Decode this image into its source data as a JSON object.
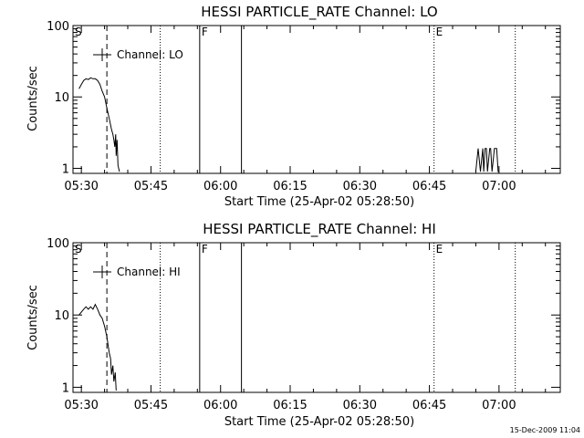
{
  "footer": {
    "timestamp": "15-Dec-2009 11:04"
  },
  "chart_data": [
    {
      "type": "line",
      "title": "HESSI PARTICLE_RATE Channel: LO",
      "xlabel": "Start Time (25-Apr-02 05:28:50)",
      "ylabel": "Counts/sec",
      "yscale": "log",
      "xlim_min": [
        -1.8,
        103.2
      ],
      "ylim": [
        0.85,
        100
      ],
      "x_ticks": [
        0,
        15,
        30,
        45,
        60,
        75,
        90
      ],
      "x_tick_labels": [
        "05:30",
        "05:45",
        "06:00",
        "06:15",
        "06:30",
        "06:45",
        "07:00"
      ],
      "y_ticks": [
        1,
        10,
        100
      ],
      "y_tick_labels": [
        "1",
        "10",
        "100"
      ],
      "legend": {
        "placement": "top-left",
        "entries": [
          "Channel: LO"
        ]
      },
      "markers": [
        {
          "label": "S",
          "x": -1.8,
          "style": "none"
        },
        {
          "label": "",
          "x": 5.5,
          "style": "dashed"
        },
        {
          "label": "",
          "x": 17,
          "style": "dotted"
        },
        {
          "label": "F",
          "x": 25.5,
          "style": "solid"
        },
        {
          "label": "",
          "x": 34.5,
          "style": "solid"
        },
        {
          "label": "E",
          "x": 76,
          "style": "dotted"
        },
        {
          "label": "",
          "x": 93.5,
          "style": "dotted"
        }
      ],
      "series": [
        {
          "values_x": [
            -0.5,
            0,
            0.5,
            1.0,
            1.5,
            2.0,
            2.5,
            3.0,
            3.5,
            4.0,
            4.5,
            5.0,
            5.5,
            6.0,
            6.5,
            6.8,
            7.0,
            7.2,
            7.4,
            7.5,
            7.7,
            7.9,
            8.2
          ],
          "values_y": [
            13,
            15,
            17,
            18,
            17.5,
            18.5,
            18,
            18,
            17,
            15,
            12,
            10,
            7,
            5,
            3.5,
            3,
            2.5,
            2.0,
            3.0,
            1.5,
            2.5,
            1.1,
            0.9
          ]
        },
        {
          "values_x": [
            85.0,
            85.5,
            86.0,
            86.5,
            86.7,
            87.0,
            87.3,
            87.5,
            88.0,
            88.2,
            88.5,
            89.0,
            89.5,
            89.8,
            90.0
          ],
          "values_y": [
            0.9,
            1.9,
            0.9,
            1.9,
            0.9,
            1.9,
            1.9,
            0.9,
            1.9,
            1.9,
            0.9,
            1.9,
            1.9,
            0.9,
            0.9
          ]
        }
      ]
    },
    {
      "type": "line",
      "title": "HESSI PARTICLE_RATE Channel: HI",
      "xlabel": "Start Time (25-Apr-02 05:28:50)",
      "ylabel": "Counts/sec",
      "yscale": "log",
      "xlim_min": [
        -1.8,
        103.2
      ],
      "ylim": [
        0.85,
        100
      ],
      "x_ticks": [
        0,
        15,
        30,
        45,
        60,
        75,
        90
      ],
      "x_tick_labels": [
        "05:30",
        "05:45",
        "06:00",
        "06:15",
        "06:30",
        "06:45",
        "07:00"
      ],
      "y_ticks": [
        1,
        10,
        100
      ],
      "y_tick_labels": [
        "1",
        "10",
        "100"
      ],
      "legend": {
        "placement": "top-left",
        "entries": [
          "Channel: HI"
        ]
      },
      "markers": [
        {
          "label": "S",
          "x": -1.8,
          "style": "none"
        },
        {
          "label": "",
          "x": 5.5,
          "style": "dashed"
        },
        {
          "label": "",
          "x": 17,
          "style": "dotted"
        },
        {
          "label": "F",
          "x": 25.5,
          "style": "solid"
        },
        {
          "label": "",
          "x": 34.5,
          "style": "solid"
        },
        {
          "label": "E",
          "x": 76,
          "style": "dotted"
        },
        {
          "label": "",
          "x": 93.5,
          "style": "dotted"
        }
      ],
      "series": [
        {
          "values_x": [
            -0.5,
            0,
            0.5,
            1.0,
            1.5,
            2.0,
            2.5,
            3.0,
            3.5,
            4.0,
            4.5,
            5.0,
            5.5,
            6.0,
            6.3,
            6.5,
            6.8,
            7.0,
            7.3,
            7.5
          ],
          "values_y": [
            10,
            11,
            12,
            13,
            12,
            13,
            12,
            14,
            12,
            10,
            9,
            7,
            5,
            3,
            2.5,
            1.5,
            2.0,
            1.2,
            1.6,
            0.9
          ]
        }
      ]
    }
  ]
}
